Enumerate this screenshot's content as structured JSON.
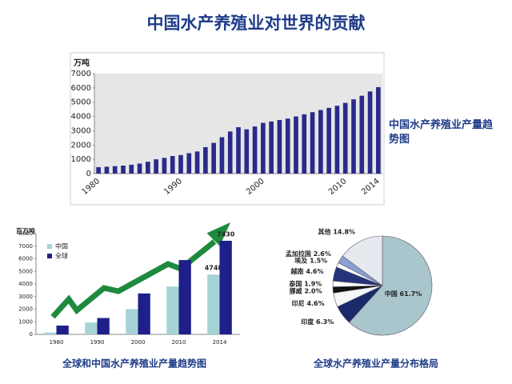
{
  "title": "中国水产养殖业对世界的贡献",
  "chart_data": [
    {
      "type": "bar",
      "y_label": "万吨",
      "annotation": "中国水产养殖业产量趋势图",
      "color": "#2a2a8a",
      "categories": [
        "1980",
        null,
        null,
        null,
        null,
        null,
        null,
        null,
        null,
        null,
        "1990",
        null,
        null,
        null,
        null,
        null,
        null,
        null,
        null,
        null,
        "2000",
        null,
        null,
        null,
        null,
        null,
        null,
        null,
        null,
        null,
        "2010",
        null,
        null,
        null,
        "2014"
      ],
      "values": [
        450,
        480,
        520,
        560,
        620,
        700,
        830,
        1000,
        1100,
        1230,
        1300,
        1430,
        1550,
        1850,
        2150,
        2550,
        2950,
        3250,
        3100,
        3300,
        3550,
        3650,
        3750,
        3850,
        4000,
        4150,
        4300,
        4450,
        4600,
        4750,
        4950,
        5200,
        5450,
        5750,
        6050
      ],
      "ylim": [
        0,
        7000
      ],
      "yticks": [
        0,
        1000,
        2000,
        3000,
        4000,
        5000,
        6000,
        7000
      ]
    },
    {
      "type": "bar",
      "y_label": "百万吨",
      "caption": "全球和中国水产养殖业产量趋势图",
      "categories": [
        "1980",
        "1990",
        "2000",
        "2010",
        "2014"
      ],
      "series": [
        {
          "name": "中国",
          "color": "#a6d3d6",
          "values": [
            150,
            950,
            2000,
            3800,
            4748
          ],
          "value_labels": [
            null,
            null,
            null,
            null,
            "4748"
          ]
        },
        {
          "name": "全球",
          "color": "#1f1f8a",
          "values": [
            700,
            1300,
            3250,
            5900,
            7430
          ],
          "value_labels": [
            null,
            null,
            null,
            null,
            "7430"
          ]
        }
      ],
      "ylim": [
        0,
        8000
      ],
      "yticks": [
        0,
        1000,
        2000,
        3000,
        4000,
        5000,
        6000,
        7000,
        8000
      ]
    },
    {
      "type": "pie",
      "caption": "全球水产养殖业产量分布格局",
      "categories": [
        "中国",
        "印度",
        "印尼",
        "挪威",
        "泰国",
        "越南",
        "埃及",
        "孟加拉国",
        "其他"
      ],
      "values": [
        61.7,
        6.3,
        4.6,
        2.0,
        1.9,
        4.6,
        1.5,
        2.6,
        14.8
      ],
      "value_labels": [
        "61.7%",
        "6.3%",
        "4.6%",
        "2.0%",
        "1.9%",
        "4.6%",
        "1.5%",
        "2.6%",
        "14.8%"
      ],
      "colors": [
        "#a9c6cc",
        "#1c2a6b",
        "#f4f6f8",
        "#111111",
        "#ffffff",
        "#25337a",
        "#ffffff",
        "#8a9fd2",
        "#e6eaef"
      ]
    }
  ]
}
